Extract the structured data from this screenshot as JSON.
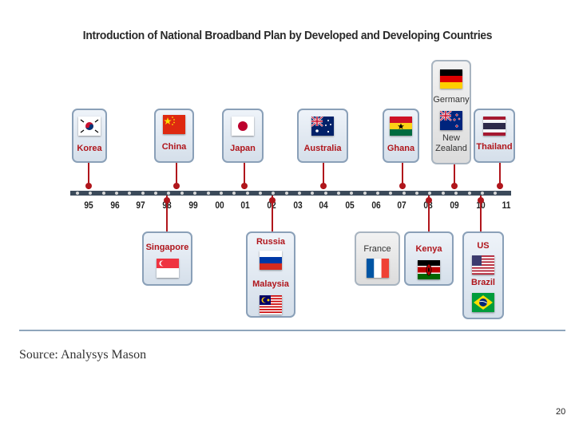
{
  "title": "Introduction of National Broadband Plan by Developed and Developing Countries",
  "source": "Source: Analysys Mason",
  "page_number": "20",
  "timeline": {
    "years": [
      "95",
      "96",
      "97",
      "98",
      "99",
      "00",
      "01",
      "02",
      "03",
      "04",
      "05",
      "06",
      "07",
      "08",
      "09",
      "10",
      "11"
    ]
  },
  "above": [
    {
      "key": "korea",
      "year": "95",
      "countries": [
        {
          "name": "Korea",
          "flag": "korea-flag-icon"
        }
      ]
    },
    {
      "key": "china",
      "year": "98",
      "countries": [
        {
          "name": "China",
          "flag": "china-flag-icon"
        }
      ]
    },
    {
      "key": "japan",
      "year": "01",
      "countries": [
        {
          "name": "Japan",
          "flag": "japan-flag-icon"
        }
      ]
    },
    {
      "key": "australia",
      "year": "04",
      "countries": [
        {
          "name": "Australia",
          "flag": "australia-flag-icon"
        }
      ]
    },
    {
      "key": "ghana",
      "year": "07",
      "countries": [
        {
          "name": "Ghana",
          "flag": "ghana-flag-icon"
        }
      ]
    },
    {
      "key": "germany-nz",
      "year": "09",
      "countries": [
        {
          "name": "Germany",
          "flag": "germany-flag-icon"
        },
        {
          "name": "New Zealand",
          "flag": "new-zealand-flag-icon"
        }
      ]
    },
    {
      "key": "thailand",
      "year": "10",
      "countries": [
        {
          "name": "Thailand",
          "flag": "thailand-flag-icon"
        }
      ]
    }
  ],
  "below": [
    {
      "key": "singapore",
      "year": "98",
      "countries": [
        {
          "name": "Singapore",
          "flag": "singapore-flag-icon"
        }
      ]
    },
    {
      "key": "russia-malaysia",
      "year": "02",
      "countries": [
        {
          "name": "Russia",
          "flag": "russia-flag-icon"
        },
        {
          "name": "Malaysia",
          "flag": "malaysia-flag-icon"
        }
      ]
    },
    {
      "key": "france",
      "year": "06",
      "countries": [
        {
          "name": "France",
          "flag": "france-flag-icon"
        }
      ]
    },
    {
      "key": "kenya",
      "year": "08",
      "countries": [
        {
          "name": "Kenya",
          "flag": "kenya-flag-icon"
        }
      ]
    },
    {
      "key": "us-brazil",
      "year": "10",
      "countries": [
        {
          "name": "US",
          "flag": "us-flag-icon"
        },
        {
          "name": "Brazil",
          "flag": "brazil-flag-icon"
        }
      ]
    }
  ],
  "colors": {
    "accent": "#b0161c",
    "axis": "#3b4a5a",
    "card_border": "#8aa0b8"
  }
}
